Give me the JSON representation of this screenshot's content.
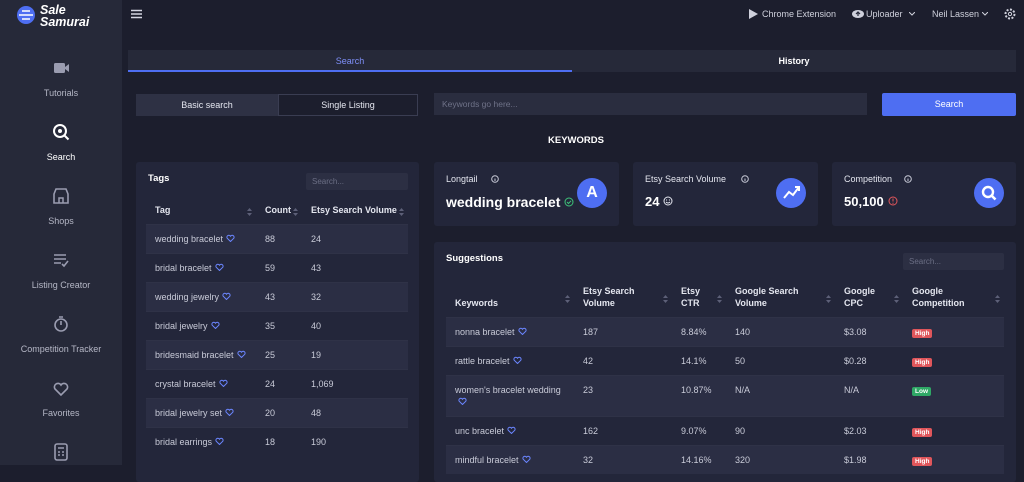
{
  "sidebar": {
    "logo": "Sale Samurai",
    "items": [
      "Tutorials",
      "Search",
      "Shops",
      "Listing Creator",
      "Competition Tracker",
      "Favorites"
    ]
  },
  "topbar": {
    "links": [
      "Chrome Extension",
      "Uploader",
      "Neil Lassen"
    ]
  },
  "tabs": [
    "Search",
    "History"
  ],
  "search_modes": [
    "Basic search",
    "Single Listing"
  ],
  "keyword_placeholder": "Keywords go here...",
  "search_button": "Search",
  "section_title": "KEYWORDS",
  "tags": {
    "title": "Tags",
    "search_placeholder": "Search...",
    "columns": [
      "Tag",
      "Count",
      "Etsy Search Volume"
    ],
    "rows": [
      [
        "wedding bracelet",
        "88",
        "24"
      ],
      [
        "bridal bracelet",
        "59",
        "43"
      ],
      [
        "wedding jewelry",
        "43",
        "32"
      ],
      [
        "bridal jewelry",
        "35",
        "40"
      ],
      [
        "bridesmaid bracelet",
        "25",
        "19"
      ],
      [
        "crystal bracelet",
        "24",
        "1,069"
      ],
      [
        "bridal jewelry set",
        "20",
        "48"
      ],
      [
        "bridal earrings",
        "18",
        "190"
      ]
    ]
  },
  "cards": [
    {
      "label": "Longtail",
      "value": "wedding bracelet",
      "badge": "A"
    },
    {
      "label": "Etsy Search Volume",
      "value": "24"
    },
    {
      "label": "Competition",
      "value": "50,100"
    }
  ],
  "suggestions": {
    "title": "Suggestions",
    "search_placeholder": "Search...",
    "columns": [
      "Keywords",
      "Etsy Search Volume",
      "Etsy CTR",
      "Google Search Volume",
      "Google CPC",
      "Google Competition"
    ],
    "rows": [
      [
        "nonna bracelet",
        "187",
        "8.84%",
        "140",
        "$3.08",
        "High"
      ],
      [
        "rattle bracelet",
        "42",
        "14.1%",
        "50",
        "$0.28",
        "High"
      ],
      [
        "women's bracelet wedding",
        "23",
        "10.87%",
        "N/A",
        "N/A",
        "Low"
      ],
      [
        "unc bracelet",
        "162",
        "9.07%",
        "90",
        "$2.03",
        "High"
      ],
      [
        "mindful bracelet",
        "32",
        "14.16%",
        "320",
        "$1.98",
        "High"
      ]
    ]
  }
}
